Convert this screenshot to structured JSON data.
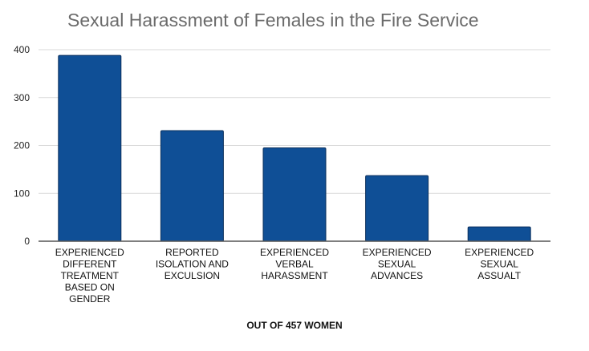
{
  "chart_data": {
    "type": "bar",
    "title": "Sexual Harassment of Females in the Fire Service",
    "xlabel": "OUT OF 457 WOMEN",
    "ylabel": "",
    "ylim": [
      0,
      400
    ],
    "yticks": [
      0,
      100,
      200,
      300,
      400
    ],
    "grid": true,
    "legend": "none",
    "categories": [
      [
        "EXPERIENCED",
        "DIFFERENT",
        "TREATMENT",
        "BASED ON",
        "GENDER"
      ],
      [
        "REPORTED",
        "ISOLATION AND",
        "EXCULSION"
      ],
      [
        "EXPERIENCED",
        "VERBAL",
        "HARASSMENT"
      ],
      [
        "EXPERIENCED",
        "SEXUAL",
        "ADVANCES"
      ],
      [
        "EXPERIENCED",
        "SEXUAL",
        "ASSUALT"
      ]
    ],
    "values": [
      388,
      231,
      195,
      137,
      30
    ],
    "bar_color": "#0f4f96",
    "bar_stroke": "#0a2f5c"
  }
}
